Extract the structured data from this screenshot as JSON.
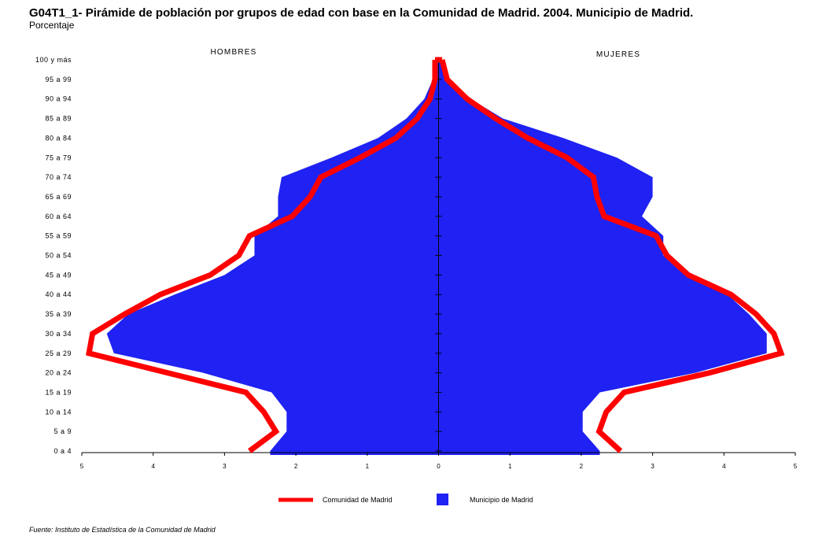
{
  "title": "G04T1_1- Pirámide de población por grupos de edad con base en la Comunidad de Madrid.  2004. Municipio de Madrid.",
  "subtitle": "Porcentaje",
  "source": "Fuente: Instituto de Estadística de la Comunidad de Madrid",
  "colors": {
    "municipio": "#1f22f2",
    "comunidad": "#ff0000"
  },
  "chart_data": {
    "type": "area",
    "title": "G04T1_1- Pirámide de población por grupos de edad con base en la Comunidad de Madrid.  2004. Municipio de Madrid.",
    "subtitle": "Porcentaje",
    "left_label": "HOMBRES",
    "right_label": "MUJERES",
    "x_ticks": [
      "5",
      "4",
      "3",
      "2",
      "1",
      "0",
      "1",
      "2",
      "3",
      "4",
      "5"
    ],
    "xlim": [
      -5,
      5
    ],
    "categories": [
      "0 a 4",
      "5 a 9",
      "10 a 14",
      "15 a 19",
      "20 a 24",
      "25 a 29",
      "30 a 34",
      "35 a 39",
      "40 a 44",
      "45 a 49",
      "50 a 54",
      "55 a 59",
      "60 a 64",
      "65 a 69",
      "70 a 74",
      "75 a 79",
      "80 a 84",
      "85 a 89",
      "90 a 94",
      "95 a 99",
      "100 y más"
    ],
    "series": [
      {
        "name": "Municipio de Madrid",
        "style": "filled area",
        "hombres": [
          2.36,
          2.13,
          2.13,
          2.34,
          3.3,
          4.55,
          4.65,
          4.35,
          3.7,
          3.0,
          2.58,
          2.58,
          2.25,
          2.25,
          2.2,
          1.5,
          0.85,
          0.45,
          0.2,
          0.08,
          0.02
        ],
        "mujeres": [
          2.26,
          2.02,
          2.02,
          2.26,
          3.6,
          4.6,
          4.6,
          4.35,
          4.05,
          3.5,
          3.15,
          3.15,
          2.85,
          3.0,
          3.0,
          2.5,
          1.75,
          0.9,
          0.45,
          0.15,
          0.05
        ]
      },
      {
        "name": "Comunidad de Madrid",
        "style": "line",
        "hombres": [
          2.65,
          2.28,
          2.45,
          2.7,
          3.8,
          4.9,
          4.85,
          4.4,
          3.9,
          3.2,
          2.8,
          2.65,
          2.05,
          1.8,
          1.65,
          1.1,
          0.6,
          0.3,
          0.12,
          0.05,
          0.05
        ],
        "mujeres": [
          2.55,
          2.25,
          2.35,
          2.6,
          3.8,
          4.8,
          4.7,
          4.45,
          4.1,
          3.5,
          3.2,
          3.05,
          2.32,
          2.22,
          2.17,
          1.8,
          1.25,
          0.8,
          0.4,
          0.12,
          0.05
        ]
      }
    ]
  }
}
